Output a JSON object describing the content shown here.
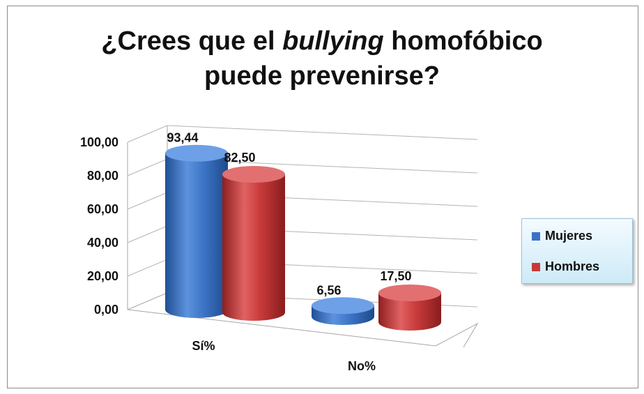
{
  "chart_data": {
    "type": "bar",
    "style": "3d-cylinder",
    "title_parts": [
      {
        "text": "¿Crees que el ",
        "italic": false
      },
      {
        "text": "bullying",
        "italic": true
      },
      {
        "text": " homofóbico",
        "italic": false
      }
    ],
    "title_line2": "puede prevenirse?",
    "categories": [
      "Sí%",
      "No%"
    ],
    "series": [
      {
        "name": "Mujeres",
        "values": [
          93.44,
          6.56
        ],
        "labels": [
          "93,44",
          "6,56"
        ],
        "color": "#3a73c4"
      },
      {
        "name": "Hombres",
        "values": [
          82.5,
          17.5
        ],
        "labels": [
          "82,50",
          "17,50"
        ],
        "color": "#c83a3a"
      }
    ],
    "y_ticks": [
      "0,00",
      "20,00",
      "40,00",
      "60,00",
      "80,00",
      "100,00"
    ],
    "ylim": [
      0,
      100
    ],
    "grid": true,
    "legend_position": "right"
  }
}
